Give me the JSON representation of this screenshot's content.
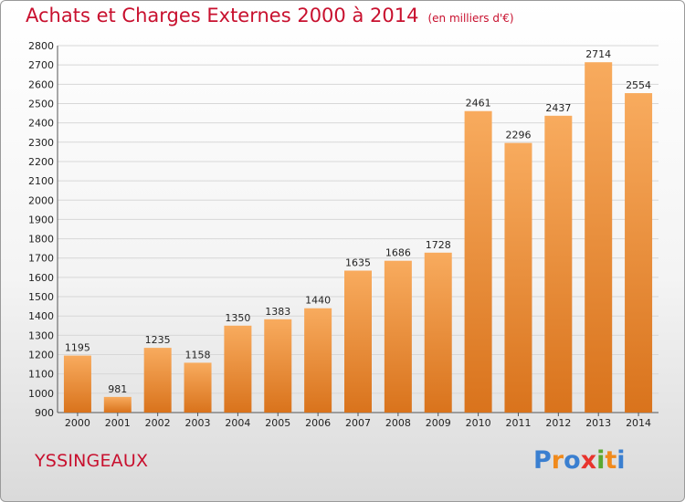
{
  "title": "Achats et Charges Externes 2000 à 2014",
  "unit": "(en milliers d'€)",
  "location": "YSSINGEAUX",
  "brand": {
    "text": "Proxiti",
    "letter_colors": [
      "#3a7fd0",
      "#f08a1c",
      "#3a7fd0",
      "#e8342d",
      "#5aa832",
      "#f08a1c",
      "#3a7fd0"
    ]
  },
  "colors": {
    "title": "#c8102e",
    "bar_light": "#f8ab5e",
    "bar_dark": "#d9731c",
    "grid": "#d7d7d7",
    "axis_text": "#222222"
  },
  "chart_data": {
    "type": "bar",
    "categories": [
      "2000",
      "2001",
      "2002",
      "2003",
      "2004",
      "2005",
      "2006",
      "2007",
      "2008",
      "2009",
      "2010",
      "2011",
      "2012",
      "2013",
      "2014"
    ],
    "values": [
      1195,
      981,
      1235,
      1158,
      1350,
      1383,
      1440,
      1635,
      1686,
      1728,
      2461,
      2296,
      2437,
      2714,
      2554
    ],
    "ylim": [
      900,
      2800
    ],
    "yticks": [
      900,
      1000,
      1100,
      1200,
      1300,
      1400,
      1500,
      1600,
      1700,
      1800,
      1900,
      2000,
      2100,
      2200,
      2300,
      2400,
      2500,
      2600,
      2700,
      2800
    ],
    "title": "Achats et Charges Externes 2000 à 2014",
    "xlabel": "",
    "ylabel": "",
    "grid": true,
    "data_labels": true
  }
}
